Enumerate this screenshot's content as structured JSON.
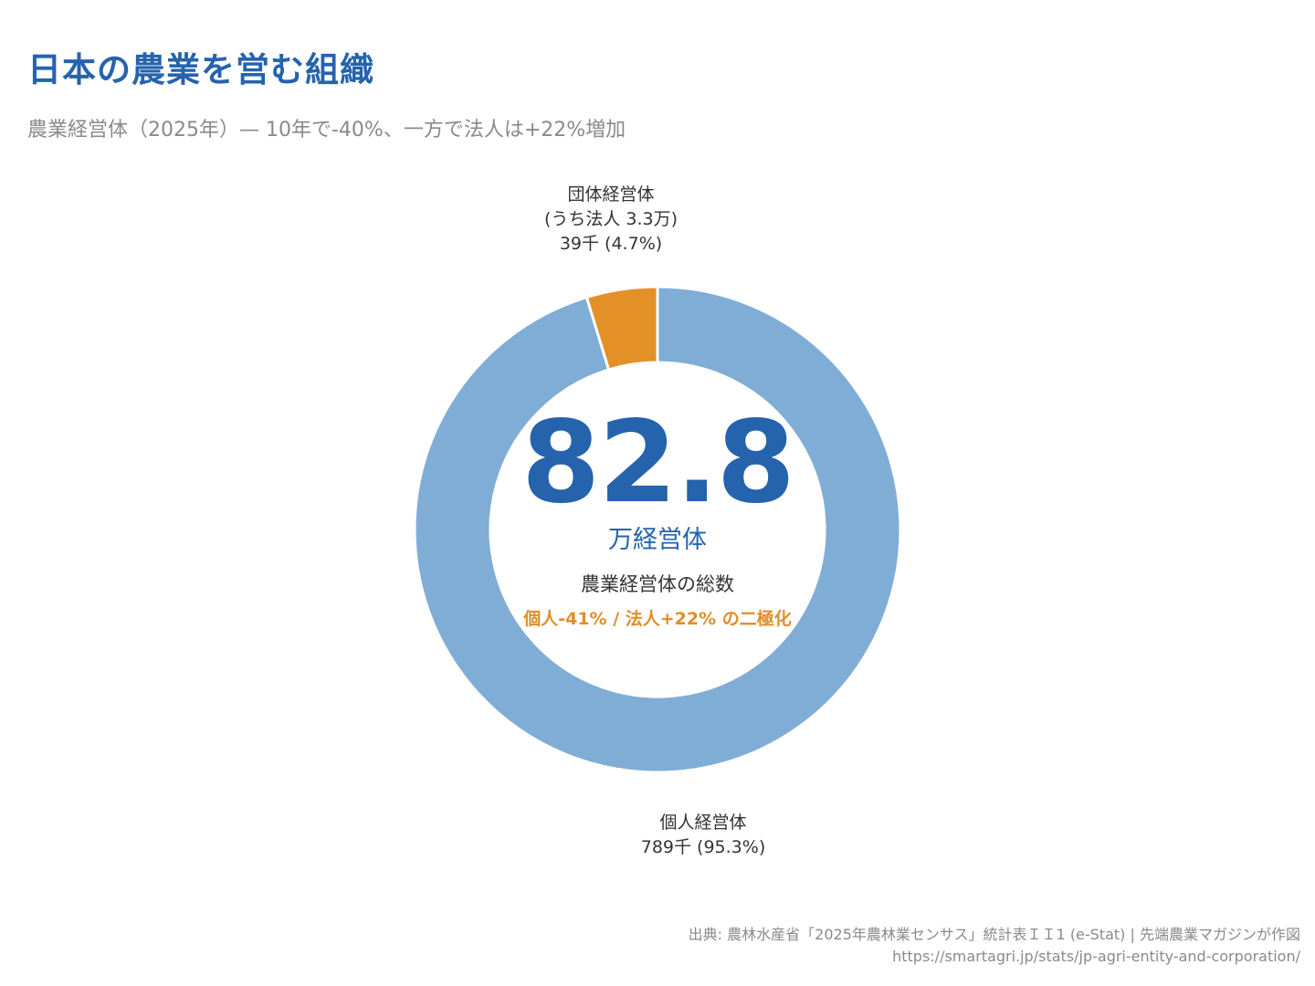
{
  "header": {
    "title": "日本の農業を営む組織",
    "subtitle": "農業経営体（2025年）— 10年で-40%、一方で法人は+22%増加"
  },
  "chart_data": {
    "type": "pie",
    "donut": true,
    "labels": [
      "個人経営体",
      "団体経営体"
    ],
    "values": [
      789,
      39
    ],
    "percentages": [
      95.3,
      4.7
    ],
    "colors": [
      "#7fadd6",
      "#e39027"
    ],
    "slice_labels": {
      "individual": {
        "name": "個人経営体",
        "value_text": "789千 (95.3%)"
      },
      "group": {
        "name": "団体経営体",
        "note": "(うち法人 3.3万)",
        "value_text": "39千 (4.7%)"
      }
    },
    "center": {
      "value": "82.8",
      "unit": "万経営体",
      "caption": "農業経営体の総数",
      "note": "個人-41% / 法人+22% の二極化"
    }
  },
  "footer": {
    "source": "出典: 農林水産省「2025年農林業センサス」統計表ＩＩ1 (e-Stat) | 先端農業マガジンが作図",
    "url": "https://smartagri.jp/stats/jp-agri-entity-and-corporation/"
  }
}
